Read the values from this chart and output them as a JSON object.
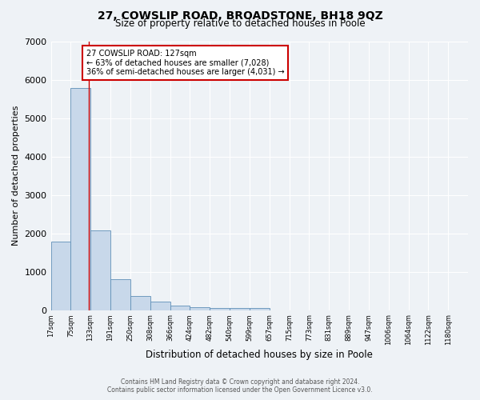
{
  "title_line1": "27, COWSLIP ROAD, BROADSTONE, BH18 9QZ",
  "title_line2": "Size of property relative to detached houses in Poole",
  "xlabel": "Distribution of detached houses by size in Poole",
  "ylabel": "Number of detached properties",
  "bar_left_edges": [
    17,
    75,
    133,
    191,
    250,
    308,
    366,
    424,
    482,
    540,
    599,
    657,
    715,
    773,
    831,
    889,
    947,
    1006,
    1064,
    1122
  ],
  "bar_heights": [
    1780,
    5780,
    2070,
    810,
    370,
    220,
    115,
    70,
    55,
    55,
    50,
    0,
    0,
    0,
    0,
    0,
    0,
    0,
    0,
    0
  ],
  "bin_width": 58,
  "bar_color": "#c8d8ea",
  "bar_edge_color": "#6090b8",
  "property_line_x": 127,
  "annotation_line1": "27 COWSLIP ROAD: 127sqm",
  "annotation_line2": "← 63% of detached houses are smaller (7,028)",
  "annotation_line3": "36% of semi-detached houses are larger (4,031) →",
  "annotation_box_color": "#ffffff",
  "annotation_box_edge_color": "#cc0000",
  "property_line_color": "#cc0000",
  "ylim": [
    0,
    7000
  ],
  "xlim": [
    17,
    1238
  ],
  "tick_labels": [
    "17sqm",
    "75sqm",
    "133sqm",
    "191sqm",
    "250sqm",
    "308sqm",
    "366sqm",
    "424sqm",
    "482sqm",
    "540sqm",
    "599sqm",
    "657sqm",
    "715sqm",
    "773sqm",
    "831sqm",
    "889sqm",
    "947sqm",
    "1006sqm",
    "1064sqm",
    "1122sqm",
    "1180sqm"
  ],
  "tick_positions": [
    17,
    75,
    133,
    191,
    250,
    308,
    366,
    424,
    482,
    540,
    599,
    657,
    715,
    773,
    831,
    889,
    947,
    1006,
    1064,
    1122,
    1180
  ],
  "footer_line1": "Contains HM Land Registry data © Crown copyright and database right 2024.",
  "footer_line2": "Contains public sector information licensed under the Open Government Licence v3.0.",
  "bg_color": "#eef2f6",
  "grid_color": "#ffffff",
  "title1_fontsize": 10,
  "title2_fontsize": 8.5,
  "xlabel_fontsize": 8.5,
  "ylabel_fontsize": 8,
  "tick_fontsize": 6,
  "annot_fontsize": 7,
  "footer_fontsize": 5.5
}
